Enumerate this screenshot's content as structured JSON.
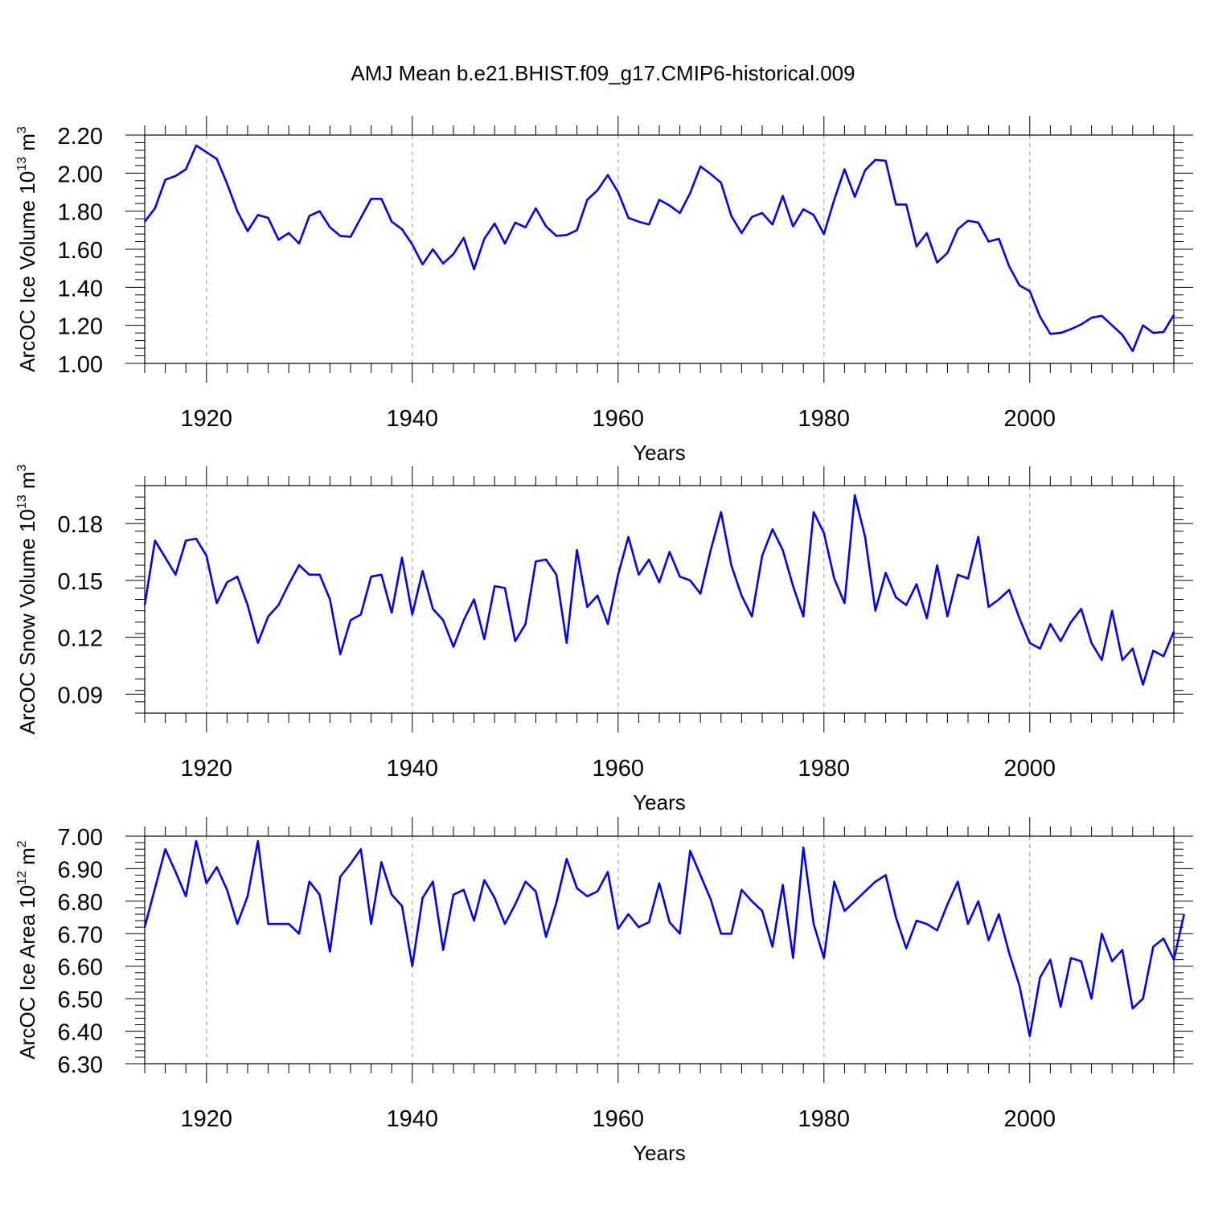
{
  "figure": {
    "title": "AMJ Mean b.e21.BHIST.f09_g17.CMIP6-historical.009",
    "line_color": "#0000ff",
    "grid_color": "#9a9a9a"
  },
  "chart_data": [
    {
      "type": "line",
      "ylabel_parts": [
        "ArcOC Ice Volume 10",
        "13",
        " m",
        "3"
      ],
      "xlabel": "Years",
      "xlim": [
        1914,
        2014
      ],
      "ylim": [
        1.0,
        2.2
      ],
      "yticks": [
        1.0,
        1.2,
        1.4,
        1.6,
        1.8,
        2.0,
        2.2
      ],
      "ytick_labels": [
        "1.00",
        "1.20",
        "1.40",
        "1.60",
        "1.80",
        "2.00",
        "2.20"
      ],
      "yminor_step": 0.04,
      "xticks": [
        1920,
        1940,
        1960,
        1980,
        2000
      ],
      "xtick_labels": [
        "1920",
        "1940",
        "1960",
        "1980",
        "2000"
      ],
      "grid": "x-dashed",
      "series": [
        {
          "name": "Ice Volume",
          "x_start": 1914,
          "values": [
            1.745,
            1.815,
            1.965,
            1.985,
            2.02,
            2.145,
            2.11,
            2.075,
            1.945,
            1.8,
            1.695,
            1.78,
            1.765,
            1.65,
            1.685,
            1.63,
            1.775,
            1.8,
            1.715,
            1.67,
            1.665,
            1.765,
            1.865,
            1.865,
            1.745,
            1.705,
            1.625,
            1.52,
            1.6,
            1.525,
            1.575,
            1.66,
            1.495,
            1.655,
            1.735,
            1.63,
            1.74,
            1.715,
            1.815,
            1.72,
            1.67,
            1.675,
            1.7,
            1.86,
            1.91,
            1.99,
            1.9,
            1.765,
            1.745,
            1.73,
            1.86,
            1.83,
            1.79,
            1.895,
            2.035,
            1.995,
            1.95,
            1.775,
            1.685,
            1.77,
            1.79,
            1.73,
            1.88,
            1.72,
            1.81,
            1.78,
            1.68,
            1.86,
            2.02,
            1.875,
            2.015,
            2.07,
            2.065,
            1.835,
            1.835,
            1.615,
            1.685,
            1.53,
            1.58,
            1.705,
            1.75,
            1.74,
            1.64,
            1.655,
            1.51,
            1.41,
            1.38,
            1.245,
            1.155,
            1.16,
            1.18,
            1.205,
            1.24,
            1.25,
            1.2,
            1.15,
            1.065,
            1.2,
            1.16,
            1.165,
            1.255
          ]
        }
      ]
    },
    {
      "type": "line",
      "ylabel_parts": [
        "ArcOC Snow Volume 10",
        "13",
        " m",
        "3"
      ],
      "xlabel": "Years",
      "xlim": [
        1914,
        2014
      ],
      "ylim": [
        0.08,
        0.2
      ],
      "yticks": [
        0.09,
        0.12,
        0.15,
        0.18
      ],
      "ytick_labels": [
        "0.09",
        "0.12",
        "0.15",
        "0.18"
      ],
      "yminor_step": 0.006,
      "xticks": [
        1920,
        1940,
        1960,
        1980,
        2000
      ],
      "xtick_labels": [
        "1920",
        "1940",
        "1960",
        "1980",
        "2000"
      ],
      "grid": "x-dashed",
      "series": [
        {
          "name": "Snow Volume",
          "x_start": 1914,
          "values": [
            0.137,
            0.171,
            0.162,
            0.153,
            0.171,
            0.172,
            0.163,
            0.138,
            0.149,
            0.152,
            0.137,
            0.117,
            0.131,
            0.137,
            0.148,
            0.158,
            0.153,
            0.153,
            0.14,
            0.111,
            0.129,
            0.132,
            0.152,
            0.153,
            0.133,
            0.162,
            0.132,
            0.155,
            0.135,
            0.129,
            0.115,
            0.129,
            0.14,
            0.119,
            0.147,
            0.146,
            0.118,
            0.127,
            0.16,
            0.161,
            0.153,
            0.117,
            0.166,
            0.136,
            0.142,
            0.127,
            0.153,
            0.173,
            0.153,
            0.161,
            0.149,
            0.165,
            0.152,
            0.15,
            0.143,
            0.166,
            0.186,
            0.158,
            0.142,
            0.131,
            0.163,
            0.177,
            0.166,
            0.147,
            0.131,
            0.186,
            0.175,
            0.151,
            0.138,
            0.195,
            0.173,
            0.134,
            0.154,
            0.141,
            0.137,
            0.148,
            0.13,
            0.158,
            0.131,
            0.153,
            0.151,
            0.173,
            0.136,
            0.14,
            0.145,
            0.13,
            0.117,
            0.114,
            0.127,
            0.118,
            0.128,
            0.135,
            0.117,
            0.108,
            0.134,
            0.108,
            0.114,
            0.095,
            0.113,
            0.11,
            0.123
          ]
        }
      ]
    },
    {
      "type": "line",
      "ylabel_parts": [
        "ArcOC Ice Area 10",
        "12",
        " m",
        "2"
      ],
      "xlabel": "Years",
      "xlim": [
        1914,
        2014
      ],
      "ylim": [
        6.3,
        7.0
      ],
      "yticks": [
        6.3,
        6.4,
        6.5,
        6.6,
        6.7,
        6.8,
        6.9,
        7.0
      ],
      "ytick_labels": [
        "6.30",
        "6.40",
        "6.50",
        "6.60",
        "6.70",
        "6.80",
        "6.90",
        "7.00"
      ],
      "yminor_step": 0.02,
      "xticks": [
        1920,
        1940,
        1960,
        1980,
        2000
      ],
      "xtick_labels": [
        "1920",
        "1940",
        "1960",
        "1980",
        "2000"
      ],
      "grid": "x-dashed",
      "series": [
        {
          "name": "Ice Area",
          "x_start": 1914,
          "values": [
            6.72,
            6.84,
            6.96,
            6.89,
            6.815,
            6.985,
            6.855,
            6.905,
            6.835,
            6.73,
            6.815,
            6.985,
            6.73,
            6.73,
            6.73,
            6.7,
            6.86,
            6.82,
            6.645,
            6.875,
            6.915,
            6.96,
            6.73,
            6.92,
            6.82,
            6.785,
            6.6,
            6.81,
            6.86,
            6.65,
            6.82,
            6.835,
            6.74,
            6.865,
            6.81,
            6.73,
            6.79,
            6.86,
            6.83,
            6.69,
            6.795,
            6.93,
            6.84,
            6.815,
            6.83,
            6.89,
            6.715,
            6.76,
            6.72,
            6.735,
            6.855,
            6.735,
            6.7,
            6.955,
            6.88,
            6.805,
            6.7,
            6.7,
            6.835,
            6.8,
            6.77,
            6.66,
            6.85,
            6.625,
            6.965,
            6.73,
            6.625,
            6.86,
            6.77,
            6.8,
            6.83,
            6.86,
            6.88,
            6.75,
            6.655,
            6.74,
            6.73,
            6.71,
            6.79,
            6.86,
            6.73,
            6.8,
            6.68,
            6.76,
            6.64,
            6.54,
            6.385,
            6.565,
            6.62,
            6.475,
            6.625,
            6.615,
            6.5,
            6.7,
            6.615,
            6.65,
            6.47,
            6.5,
            6.66,
            6.685,
            6.62,
            6.76
          ]
        }
      ]
    }
  ]
}
